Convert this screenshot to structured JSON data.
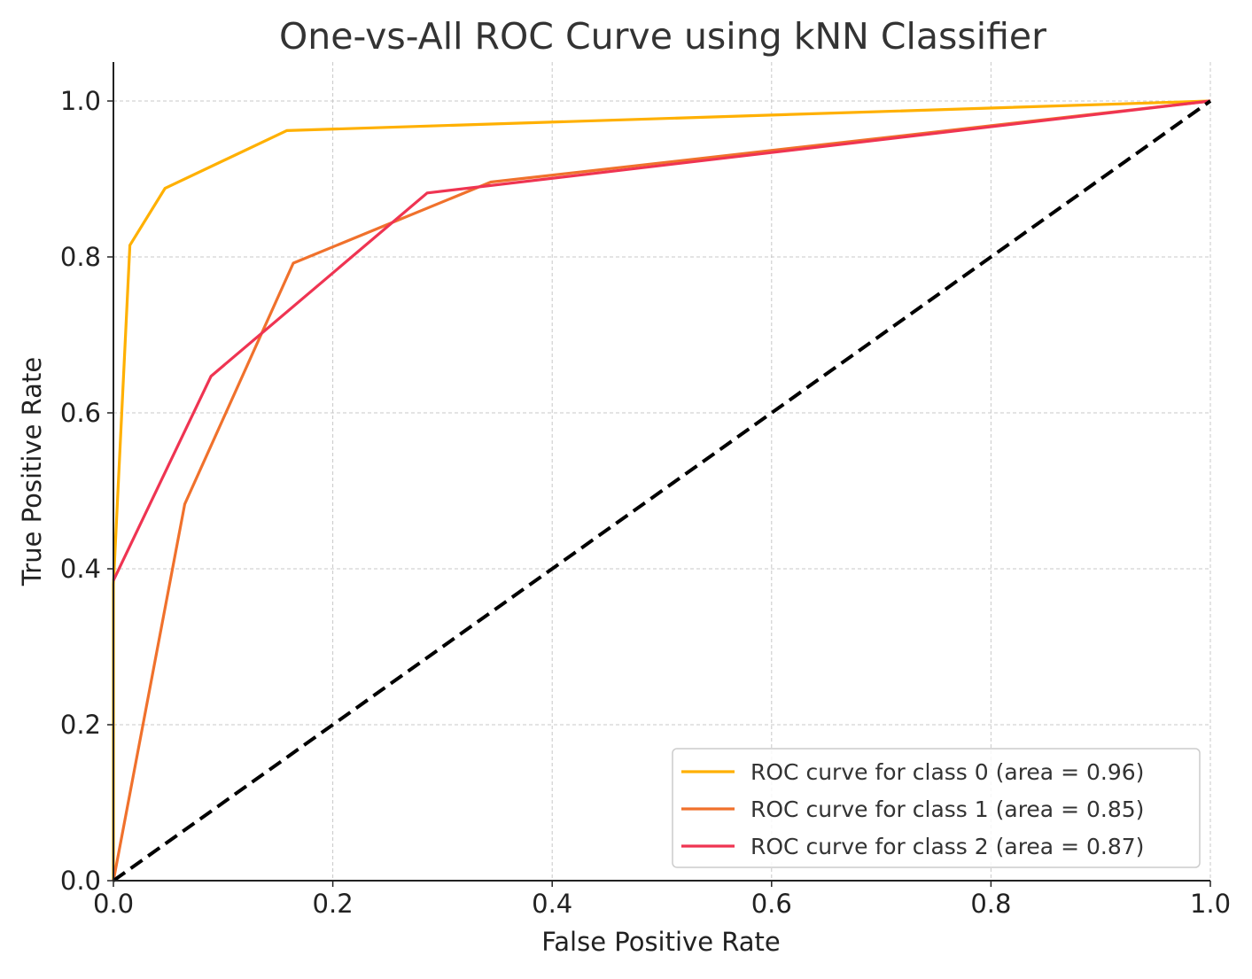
{
  "chart_data": {
    "type": "line",
    "title": "One-vs-All ROC Curve using kNN Classifier",
    "xlabel": "False Positive Rate",
    "ylabel": "True Positive Rate",
    "xlim": [
      0.0,
      1.0
    ],
    "ylim": [
      0.0,
      1.05
    ],
    "x_ticks": [
      "0.0",
      "0.2",
      "0.4",
      "0.6",
      "0.8",
      "1.0"
    ],
    "y_ticks": [
      "0.0",
      "0.2",
      "0.4",
      "0.6",
      "0.8",
      "1.0"
    ],
    "grid": true,
    "legend_position": "lower-right",
    "series": [
      {
        "name": "ROC curve for class 0 (area = 0.96)",
        "color": "#FFB000",
        "x": [
          0.0,
          0.0,
          0.015,
          0.047,
          0.158,
          1.0
        ],
        "y": [
          0.0,
          0.38,
          0.815,
          0.888,
          0.962,
          1.0
        ]
      },
      {
        "name": "ROC curve for class 1 (area = 0.85)",
        "color": "#F0712C",
        "x": [
          0.0,
          0.065,
          0.164,
          0.344,
          1.0
        ],
        "y": [
          0.0,
          0.483,
          0.792,
          0.896,
          1.0
        ]
      },
      {
        "name": "ROC curve for class 2 (area = 0.87)",
        "color": "#EF3452",
        "x": [
          0.0,
          0.089,
          0.286,
          1.0
        ],
        "y": [
          0.385,
          0.647,
          0.882,
          1.0
        ]
      }
    ],
    "reference_line": {
      "color": "#000000",
      "x": [
        0.0,
        1.0
      ],
      "y": [
        0.0,
        1.0
      ]
    }
  }
}
